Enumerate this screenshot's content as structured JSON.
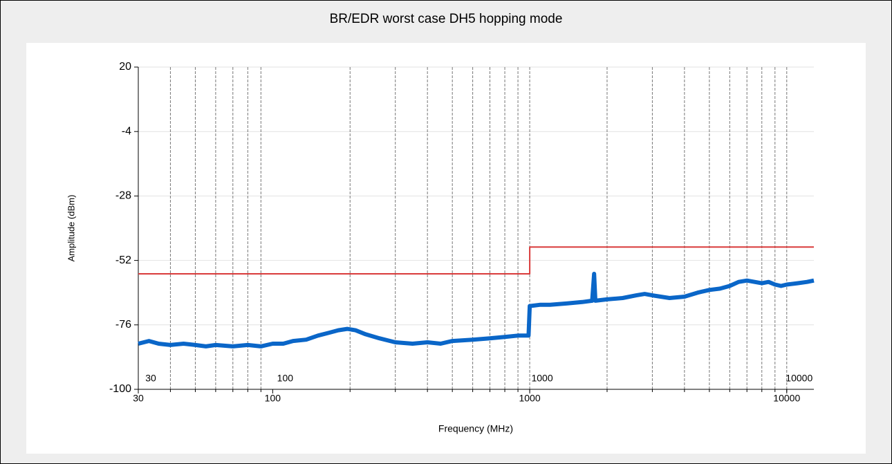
{
  "chart_data": {
    "type": "line",
    "title": "BR/EDR worst case DH5 hopping mode",
    "x_label": "Frequency (MHz)",
    "y_label": "Amplitude (dBm)",
    "log_x": true,
    "xlim": [
      30,
      12750
    ],
    "ylim": [
      -100,
      20
    ],
    "xticks": [
      30,
      100,
      1000,
      10000
    ],
    "yticks": [
      20,
      -4,
      -28,
      -52,
      -76,
      -100
    ],
    "xgrid": [
      40,
      50,
      60,
      70,
      80,
      90,
      200,
      300,
      400,
      500,
      600,
      700,
      800,
      900,
      1000,
      2000,
      3000,
      4000,
      5000,
      6000,
      7000,
      8000,
      9000,
      10000
    ],
    "grid": true,
    "series": [
      {
        "color": "#d93a3a",
        "x": [
          30,
          1000,
          1000,
          12750
        ],
        "values": [
          -57,
          -57,
          -47,
          -47
        ]
      },
      {
        "color": "#0a66c8",
        "x": [
          30,
          33,
          36,
          40,
          45,
          50,
          55,
          60,
          70,
          80,
          90,
          100,
          110,
          120,
          135,
          150,
          165,
          180,
          195,
          210,
          230,
          260,
          300,
          350,
          400,
          450,
          500,
          600,
          700,
          800,
          900,
          990,
          1000,
          1100,
          1200,
          1400,
          1600,
          1750,
          1780,
          1800,
          2000,
          2300,
          2600,
          2800,
          3000,
          3500,
          4000,
          4500,
          5000,
          5500,
          6000,
          6500,
          7000,
          7500,
          8000,
          8500,
          9000,
          9500,
          10000,
          11000,
          12000,
          12750
        ],
        "values": [
          -83,
          -82,
          -83,
          -83.5,
          -83,
          -83.5,
          -84,
          -83.5,
          -84,
          -83.5,
          -84,
          -83,
          -83,
          -82,
          -81.5,
          -80,
          -79,
          -78,
          -77.5,
          -78,
          -79.5,
          -81,
          -82.5,
          -83,
          -82.5,
          -83,
          -82,
          -81.5,
          -81,
          -80.5,
          -80,
          -80,
          -69,
          -68.5,
          -68.5,
          -68,
          -67.5,
          -67,
          -57,
          -67,
          -66.5,
          -66,
          -65,
          -64.5,
          -65,
          -66,
          -65.5,
          -64,
          -63,
          -62.5,
          -61.5,
          -60,
          -59.5,
          -60,
          -60.5,
          -60,
          -61,
          -61.5,
          -61,
          -60.5,
          -60,
          -59.5
        ]
      }
    ]
  }
}
